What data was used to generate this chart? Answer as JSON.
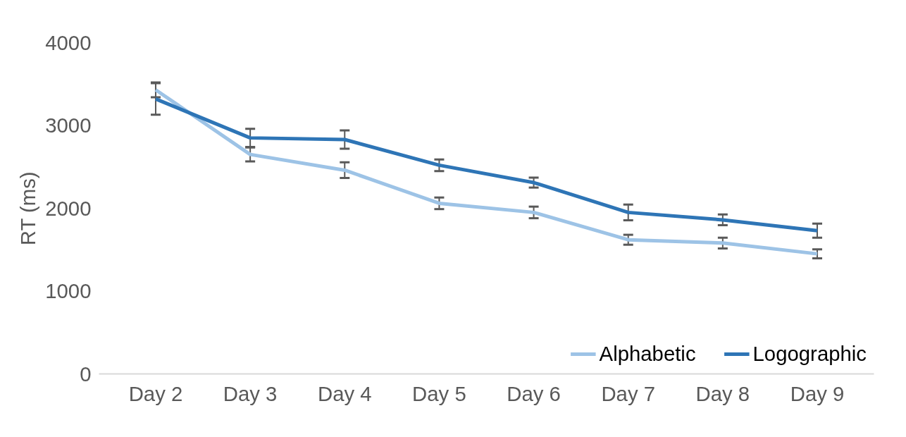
{
  "chart_data": {
    "type": "line",
    "ylabel": "RT (ms)",
    "categories": [
      "Day 2",
      "Day 3",
      "Day 4",
      "Day 5",
      "Day 6",
      "Day 7",
      "Day 8",
      "Day 9"
    ],
    "series": [
      {
        "name": "Alphabetic",
        "color": "#9dc3e6",
        "values": [
          3430,
          2650,
          2460,
          2060,
          1950,
          1620,
          1580,
          1450
        ],
        "errors": [
          90,
          85,
          95,
          70,
          70,
          60,
          65,
          55
        ]
      },
      {
        "name": "Logographic",
        "color": "#2e75b6",
        "values": [
          3320,
          2850,
          2830,
          2520,
          2310,
          1950,
          1860,
          1730
        ],
        "errors": [
          190,
          110,
          110,
          70,
          60,
          95,
          65,
          85
        ]
      }
    ],
    "ylim": [
      0,
      4000
    ],
    "yticks": [
      0,
      1000,
      2000,
      3000,
      4000
    ],
    "grid": false,
    "legend": "bottom right",
    "marker": "none",
    "line_style": "solid"
  }
}
